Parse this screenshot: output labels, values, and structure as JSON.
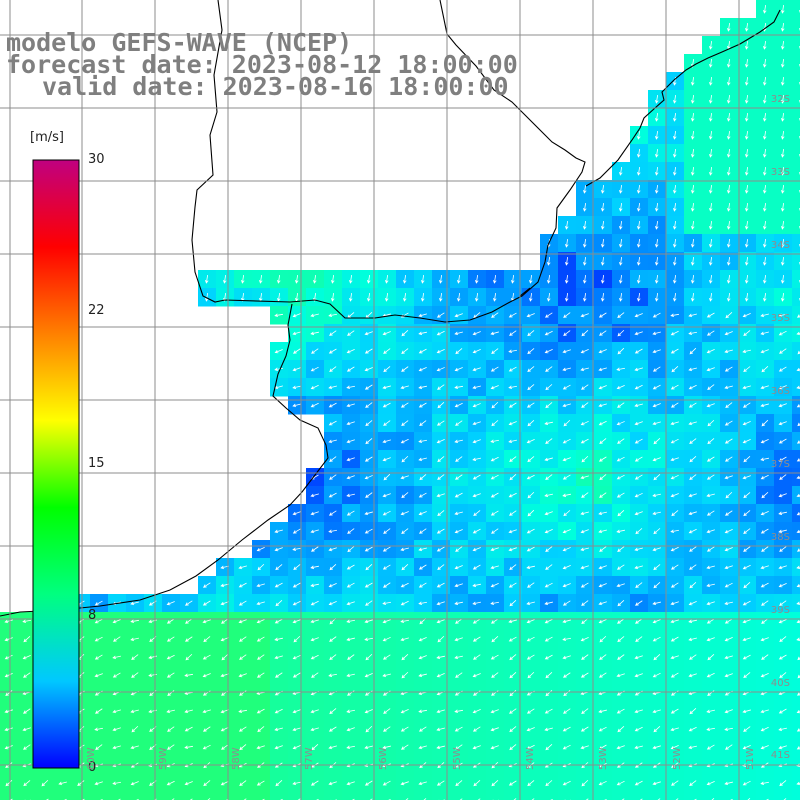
{
  "title": {
    "model": "modelo GEFS-WAVE (NCEP)",
    "forecast": "forecast date: 2023-08-12 18:00:00",
    "valid": "valid date: 2023-08-16 18:00:00"
  },
  "colorbar": {
    "unit": "[m/s]",
    "ticks": [
      "30",
      "22",
      "15",
      "8",
      "0"
    ],
    "tick_values": [
      30,
      22,
      15,
      8,
      0
    ],
    "range": [
      0,
      30
    ],
    "colors": [
      "#0000ff",
      "#00c8ff",
      "#00ff80",
      "#00ff00",
      "#ffff00",
      "#ff8000",
      "#ff0000",
      "#c00080"
    ]
  },
  "lat_labels": [
    "32S",
    "33S",
    "34S",
    "35S",
    "36S",
    "37S",
    "38S",
    "39S",
    "40S",
    "41S"
  ],
  "lon_labels": [
    "60W",
    "59W",
    "58W",
    "57W",
    "56W",
    "55W",
    "54W",
    "53W",
    "52W",
    "51W"
  ],
  "colors": {
    "land": "#ffffff",
    "coast": "#000000",
    "grid": "#8c8c8c",
    "title": "#7f7f7f",
    "arrow": "#ffffff"
  }
}
